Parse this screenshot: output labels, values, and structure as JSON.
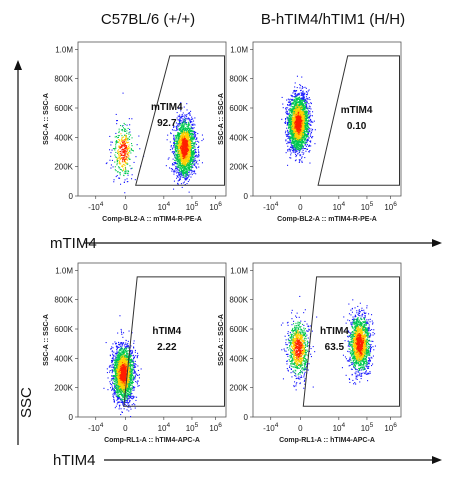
{
  "column_titles": [
    "C57BL/6 (+/+)",
    "B-hTIM4/hTIM1 (H/H)"
  ],
  "row_labels": [
    "mTIM4",
    "hTIM4"
  ],
  "y_axis_label": "SSC",
  "colors": {
    "low_density": "#1a1aff",
    "mid_density": "#00c850",
    "high_density": "#ffd000",
    "peak_density": "#ff2000",
    "gate": "#333333",
    "arrow": "#111111"
  },
  "chart_data": [
    {
      "type": "scatter",
      "row": 0,
      "col": 0,
      "xlabel": "Comp-BL2-A :: mTIM4-R-PE-A",
      "ylabel": "SSC-A :: SSC-A",
      "x_scale": "biexponential",
      "x_ticks": [
        "-10",
        "0",
        "10",
        "10",
        "10"
      ],
      "x_tick_exponents": [
        "4",
        "",
        "4",
        "5",
        "6"
      ],
      "y_ticks": [
        "1.0M",
        "800K",
        "600K",
        "400K",
        "200K",
        "0"
      ],
      "ylim": [
        0,
        1050000
      ],
      "gate": {
        "name": "mTIM4",
        "percent": "92.7"
      },
      "populations": [
        {
          "x_center": 0,
          "y_center": 310000,
          "weight": 0.15
        },
        {
          "x_center": 60000,
          "y_center": 330000,
          "weight": 0.85
        }
      ]
    },
    {
      "type": "scatter",
      "row": 0,
      "col": 1,
      "xlabel": "Comp-BL2-A :: mTIM4-R-PE-A",
      "ylabel": "SSC-A :: SSC-A",
      "x_scale": "biexponential",
      "x_ticks": [
        "-10",
        "0",
        "10",
        "10",
        "10"
      ],
      "x_tick_exponents": [
        "4",
        "",
        "4",
        "5",
        "6"
      ],
      "y_ticks": [
        "1.0M",
        "800K",
        "600K",
        "400K",
        "200K",
        "0"
      ],
      "ylim": [
        0,
        1050000
      ],
      "gate": {
        "name": "mTIM4",
        "percent": "0.10"
      },
      "populations": [
        {
          "x_center": 0,
          "y_center": 500000,
          "weight": 1.0
        }
      ]
    },
    {
      "type": "scatter",
      "row": 1,
      "col": 0,
      "xlabel": "Comp-RL1-A :: hTIM4-APC-A",
      "ylabel": "SSC-A :: SSC-A",
      "x_scale": "biexponential",
      "x_ticks": [
        "-10",
        "0",
        "10",
        "10",
        "10"
      ],
      "x_tick_exponents": [
        "4",
        "",
        "4",
        "5",
        "6"
      ],
      "y_ticks": [
        "1.0M",
        "800K",
        "600K",
        "400K",
        "200K",
        "0"
      ],
      "ylim": [
        0,
        1050000
      ],
      "gate": {
        "name": "hTIM4",
        "percent": "2.22"
      },
      "populations": [
        {
          "x_center": 0,
          "y_center": 300000,
          "weight": 1.0
        }
      ]
    },
    {
      "type": "scatter",
      "row": 1,
      "col": 1,
      "xlabel": "Comp-RL1-A :: hTIM4-APC-A",
      "ylabel": "SSC-A :: SSC-A",
      "x_scale": "biexponential",
      "x_ticks": [
        "-10",
        "0",
        "10",
        "10",
        "10"
      ],
      "x_tick_exponents": [
        "4",
        "",
        "4",
        "5",
        "6"
      ],
      "y_ticks": [
        "1.0M",
        "800K",
        "600K",
        "400K",
        "200K",
        "0"
      ],
      "ylim": [
        0,
        1050000
      ],
      "gate": {
        "name": "hTIM4",
        "percent": "63.5"
      },
      "populations": [
        {
          "x_center": 0,
          "y_center": 470000,
          "weight": 0.35
        },
        {
          "x_center": 60000,
          "y_center": 500000,
          "weight": 0.65
        }
      ]
    }
  ]
}
